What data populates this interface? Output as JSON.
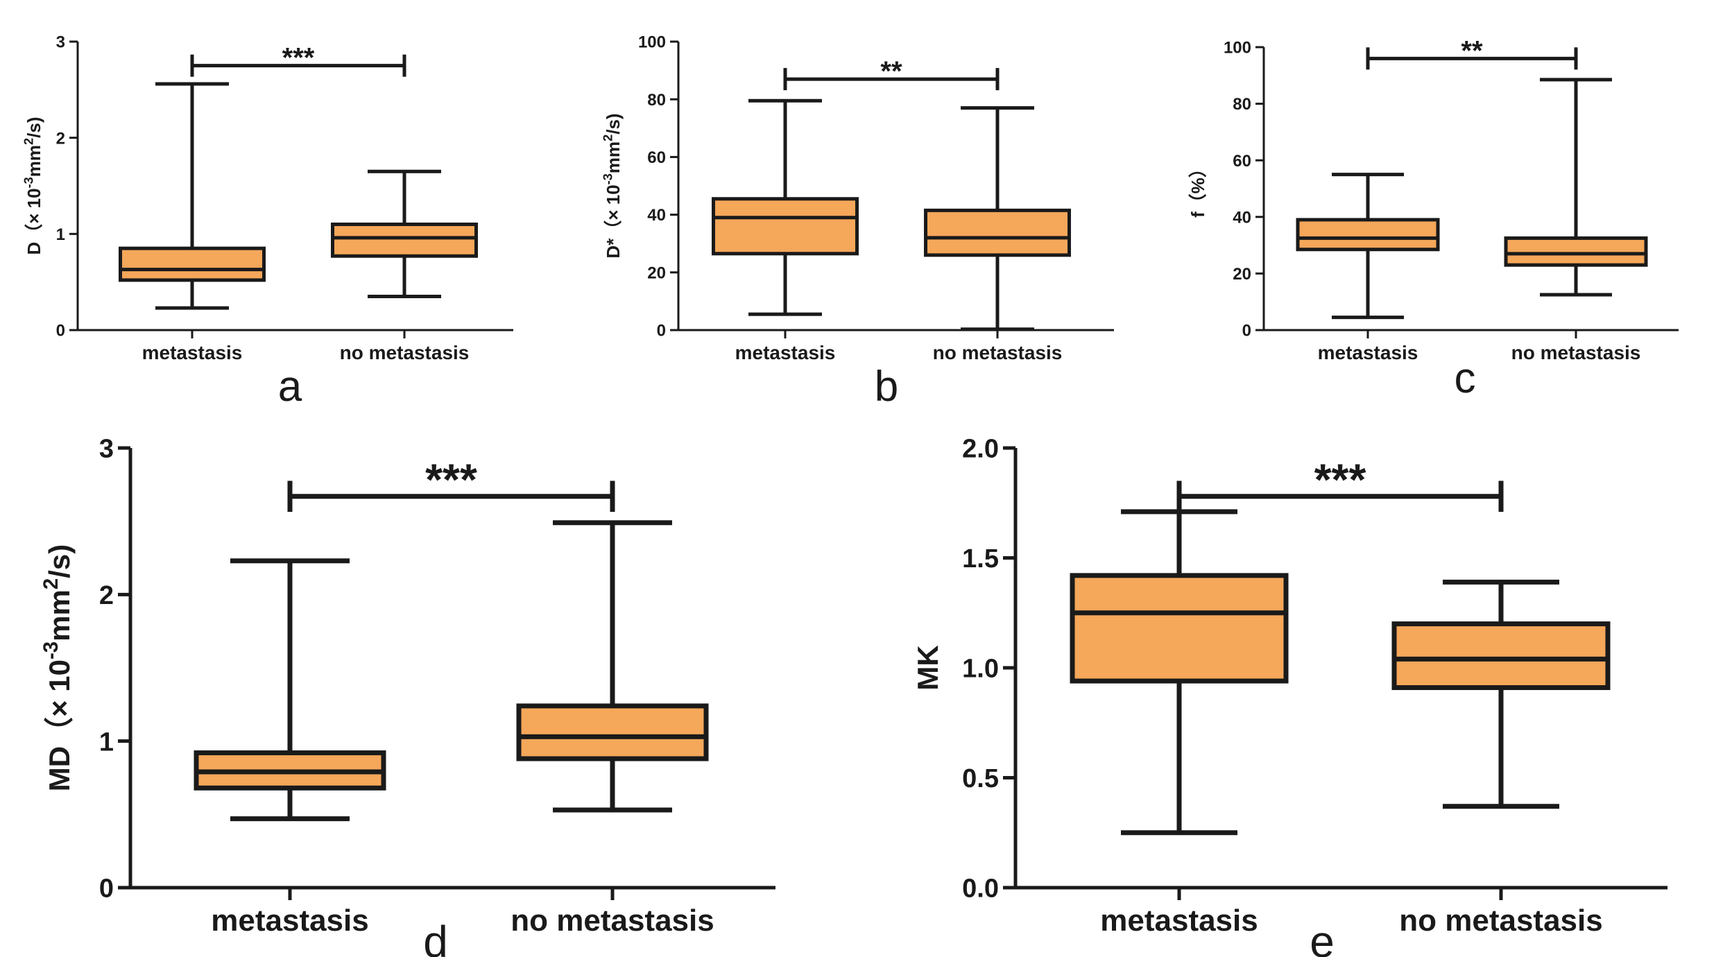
{
  "colors": {
    "box_fill": "#F5A75A",
    "ink": "#1A1A1A",
    "background": "#FFFFFF"
  },
  "chart_data": [
    {
      "panel": "a",
      "type": "boxplot",
      "ylabel": {
        "prefix": "D（× 10",
        "sup1": "-3",
        "mid": "mm",
        "sup2": "2",
        "suffix": "/s)"
      },
      "ylim": [
        0,
        3
      ],
      "yticks": [
        0,
        1,
        2,
        3
      ],
      "ytick_labels": [
        "0",
        "1",
        "2",
        "3"
      ],
      "categories": [
        "metastasis",
        "no metastasis"
      ],
      "boxes": [
        {
          "min": 0.23,
          "q1": 0.52,
          "median": 0.63,
          "q3": 0.85,
          "max": 2.56
        },
        {
          "min": 0.35,
          "q1": 0.77,
          "median": 0.96,
          "q3": 1.1,
          "max": 1.65
        }
      ],
      "significance": {
        "label": "***",
        "y": 2.75
      }
    },
    {
      "panel": "b",
      "type": "boxplot",
      "ylabel": {
        "prefix": "D*（× 10",
        "sup1": "-3",
        "mid": "mm",
        "sup2": "2",
        "suffix": "/s)"
      },
      "ylim": [
        0,
        100
      ],
      "yticks": [
        0,
        20,
        40,
        60,
        80,
        100
      ],
      "ytick_labels": [
        "0",
        "20",
        "40",
        "60",
        "80",
        "100"
      ],
      "categories": [
        "metastasis",
        "no metastasis"
      ],
      "boxes": [
        {
          "min": 5.5,
          "q1": 26.5,
          "median": 39,
          "q3": 45.5,
          "max": 79.5
        },
        {
          "min": 0.3,
          "q1": 26,
          "median": 32,
          "q3": 41.5,
          "max": 77
        }
      ],
      "significance": {
        "label": "**",
        "y": 87
      }
    },
    {
      "panel": "c",
      "type": "boxplot",
      "ylabel": {
        "text": "f（%）"
      },
      "ylim": [
        0,
        100
      ],
      "yticks": [
        0,
        20,
        40,
        60,
        80,
        100
      ],
      "ytick_labels": [
        "0",
        "20",
        "40",
        "60",
        "80",
        "100"
      ],
      "categories": [
        "metastasis",
        "no metastasis"
      ],
      "boxes": [
        {
          "min": 4.5,
          "q1": 28.5,
          "median": 32.5,
          "q3": 39,
          "max": 55
        },
        {
          "min": 12.5,
          "q1": 23,
          "median": 27,
          "q3": 32.5,
          "max": 88.5
        }
      ],
      "significance": {
        "label": "**",
        "y": 96
      }
    },
    {
      "panel": "d",
      "type": "boxplot",
      "ylabel": {
        "prefix": "MD（× 10",
        "sup1": "-3",
        "mid": "mm",
        "sup2": "2",
        "suffix": "/s)"
      },
      "ylim": [
        0,
        3
      ],
      "yticks": [
        0,
        1,
        2,
        3
      ],
      "ytick_labels": [
        "0",
        "1",
        "2",
        "3"
      ],
      "categories": [
        "metastasis",
        "no metastasis"
      ],
      "boxes": [
        {
          "min": 0.47,
          "q1": 0.68,
          "median": 0.79,
          "q3": 0.92,
          "max": 2.23
        },
        {
          "min": 0.53,
          "q1": 0.88,
          "median": 1.03,
          "q3": 1.24,
          "max": 2.49
        }
      ],
      "significance": {
        "label": "***",
        "y": 2.67
      }
    },
    {
      "panel": "e",
      "type": "boxplot",
      "ylabel": {
        "text": "MK"
      },
      "ylim": [
        0,
        2
      ],
      "yticks": [
        0,
        0.5,
        1,
        1.5,
        2
      ],
      "ytick_labels": [
        "0.0",
        "0.5",
        "1.0",
        "1.5",
        "2.0"
      ],
      "categories": [
        "metastasis",
        "no metastasis"
      ],
      "boxes": [
        {
          "min": 0.25,
          "q1": 0.94,
          "median": 1.25,
          "q3": 1.42,
          "max": 1.71
        },
        {
          "min": 0.37,
          "q1": 0.91,
          "median": 1.04,
          "q3": 1.2,
          "max": 1.39
        }
      ],
      "significance": {
        "label": "***",
        "y": 1.78
      }
    }
  ]
}
